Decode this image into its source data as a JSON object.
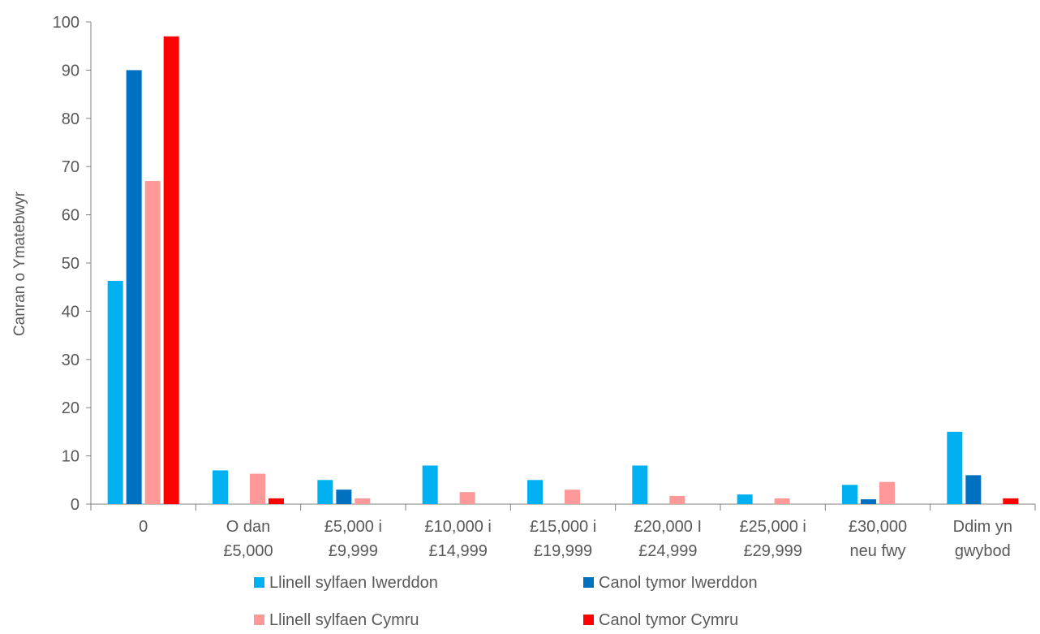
{
  "chart_data": {
    "type": "bar",
    "title": "",
    "xlabel": "",
    "ylabel": "Canran o Ymatebwyr",
    "ylim": [
      0,
      100
    ],
    "yticks": [
      0,
      10,
      20,
      30,
      40,
      50,
      60,
      70,
      80,
      90,
      100
    ],
    "grid": false,
    "legend_position": "bottom",
    "categories": [
      [
        "0"
      ],
      [
        "O dan",
        "£5,000"
      ],
      [
        "£5,000 i",
        "£9,999"
      ],
      [
        "£10,000 i",
        "£14,999"
      ],
      [
        "£15,000 i",
        "£19,999"
      ],
      [
        "£20,000 I",
        "£24,999"
      ],
      [
        "£25,000 i",
        "£29,999"
      ],
      [
        "£30,000",
        "neu fwy"
      ],
      [
        "Ddim yn",
        "gwybod"
      ]
    ],
    "series": [
      {
        "name": "Llinell sylfaen Iwerddon",
        "color": "#00b0f0",
        "values": [
          46.3,
          7,
          5,
          8,
          5,
          8,
          2,
          4,
          15
        ]
      },
      {
        "name": "Canol tymor Iwerddon",
        "color": "#0070c0",
        "values": [
          90,
          0,
          3,
          0,
          0,
          0,
          0,
          1,
          6
        ]
      },
      {
        "name": "Llinell sylfaen Cymru",
        "color": "#ff9999",
        "values": [
          67,
          6.3,
          1.2,
          2.5,
          3,
          1.7,
          1.2,
          4.6,
          0
        ]
      },
      {
        "name": "Canol tymor Cymru",
        "color": "#ff0000",
        "values": [
          97,
          1.2,
          0,
          0,
          0,
          0,
          0,
          0,
          1.2
        ]
      }
    ]
  }
}
